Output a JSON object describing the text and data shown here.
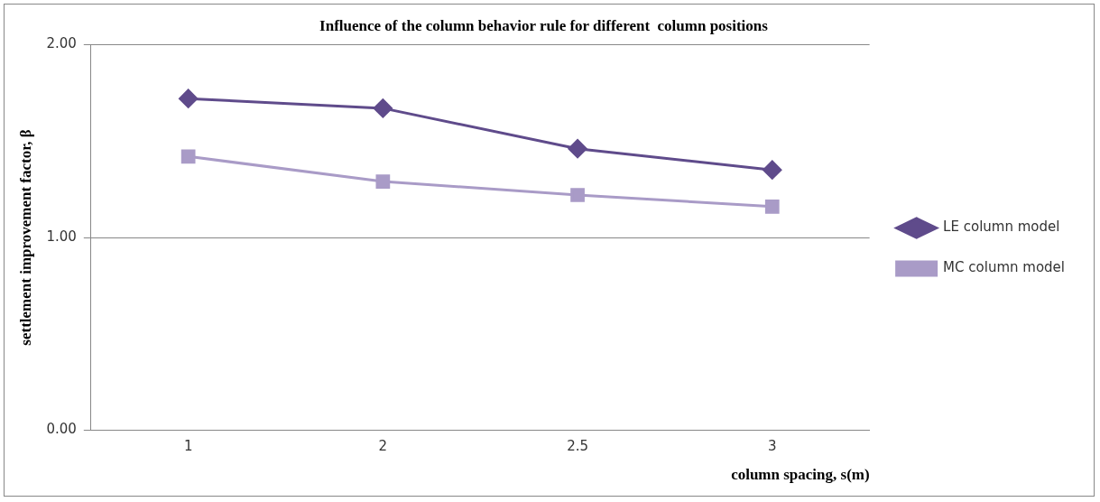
{
  "chart_data": {
    "type": "line",
    "title": "Influence of the column behavior rule for different  column positions",
    "xlabel": "column spacing, s(m)",
    "ylabel": "settlement improvement factor, β",
    "categories": [
      "1",
      "2",
      "2.5",
      "3"
    ],
    "series": [
      {
        "name": "LE column model",
        "color": "#5f4b8b",
        "marker": "diamond",
        "values": [
          1.72,
          1.67,
          1.46,
          1.35
        ]
      },
      {
        "name": "MC column model",
        "color": "#a99bc7",
        "marker": "square",
        "values": [
          1.42,
          1.29,
          1.22,
          1.16
        ]
      }
    ],
    "ylim": [
      0,
      2
    ],
    "yticks": [
      {
        "value": 0,
        "label": "0.00"
      },
      {
        "value": 1,
        "label": "1.00"
      },
      {
        "value": 2,
        "label": "2.00"
      }
    ],
    "grid": "y",
    "legend": "right",
    "line_style": "solid"
  }
}
